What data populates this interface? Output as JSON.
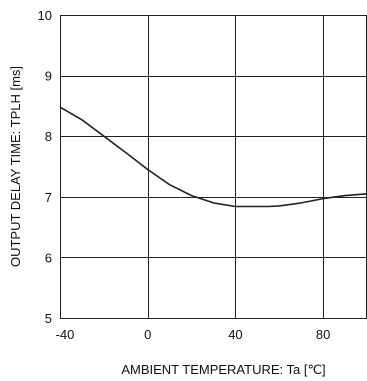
{
  "chart_data": {
    "type": "line",
    "title": "",
    "xlabel": "AMBIENT TEMPERATURE: Ta [℃]",
    "ylabel": "OUTPUT DELAY TIME: TPLH [ms]",
    "xlim": [
      -40,
      100
    ],
    "ylim": [
      5,
      10
    ],
    "x_ticks": [
      -40,
      0,
      40,
      80
    ],
    "x_tick_labels": [
      "-40",
      "0",
      "40",
      "80"
    ],
    "y_ticks": [
      5,
      6,
      7,
      8,
      9,
      10
    ],
    "y_tick_labels": [
      "5",
      "6",
      "7",
      "8",
      "9",
      "10"
    ],
    "grid": true,
    "series": [
      {
        "x": [
          -40,
          -30,
          -20,
          -10,
          0,
          10,
          20,
          30,
          40,
          50,
          55,
          60,
          70,
          80,
          90,
          100
        ],
        "y": [
          8.48,
          8.27,
          8.0,
          7.73,
          7.45,
          7.2,
          7.02,
          6.9,
          6.84,
          6.84,
          6.84,
          6.85,
          6.9,
          6.97,
          7.02,
          7.05
        ]
      }
    ],
    "colors": {
      "line": "#222222",
      "grid": "#222222",
      "frame": "#222222"
    }
  }
}
